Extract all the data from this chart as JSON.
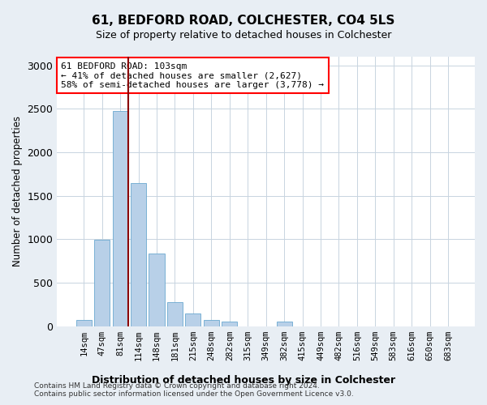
{
  "title1": "61, BEDFORD ROAD, COLCHESTER, CO4 5LS",
  "title2": "Size of property relative to detached houses in Colchester",
  "xlabel": "Distribution of detached houses by size in Colchester",
  "ylabel": "Number of detached properties",
  "categories": [
    "14sqm",
    "47sqm",
    "81sqm",
    "114sqm",
    "148sqm",
    "181sqm",
    "215sqm",
    "248sqm",
    "282sqm",
    "315sqm",
    "349sqm",
    "382sqm",
    "415sqm",
    "449sqm",
    "482sqm",
    "516sqm",
    "549sqm",
    "583sqm",
    "616sqm",
    "650sqm",
    "683sqm"
  ],
  "values": [
    70,
    990,
    2480,
    1650,
    840,
    280,
    145,
    70,
    50,
    0,
    0,
    55,
    0,
    0,
    0,
    0,
    0,
    0,
    0,
    0,
    0
  ],
  "bar_color": "#b8d0e8",
  "bar_edge_color": "#6aa8d0",
  "vline_color": "#8b0000",
  "annotation_text": "61 BEDFORD ROAD: 103sqm\n← 41% of detached houses are smaller (2,627)\n58% of semi-detached houses are larger (3,778) →",
  "annotation_box_color": "white",
  "annotation_box_edge_color": "red",
  "ylim": [
    0,
    3100
  ],
  "yticks": [
    0,
    500,
    1000,
    1500,
    2000,
    2500,
    3000
  ],
  "footer1": "Contains HM Land Registry data © Crown copyright and database right 2024.",
  "footer2": "Contains public sector information licensed under the Open Government Licence v3.0.",
  "bg_color": "#e8eef4",
  "plot_bg_color": "#ffffff",
  "grid_color": "#c8d4e0"
}
